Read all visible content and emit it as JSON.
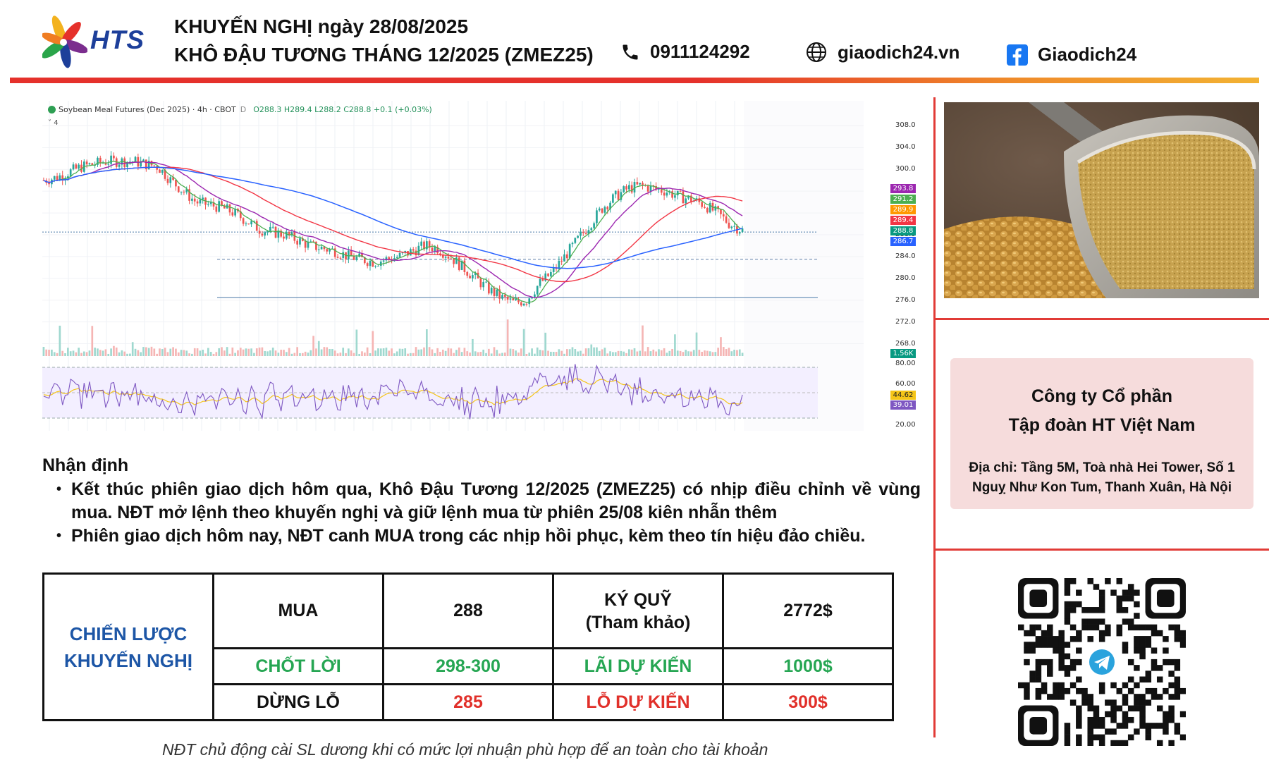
{
  "header": {
    "logo_text": "HTS",
    "title_line1": "KHUYẾN NGHỊ ngày 28/08/2025",
    "title_line2": "KHÔ ĐẬU TƯƠNG THÁNG 12/2025 (ZMEZ25)",
    "phone": "0911124292",
    "website": "giaodich24.vn",
    "facebook": "Giaodich24"
  },
  "chart_data": {
    "type": "candlestick",
    "title": "Soybean Meal Futures (Dec 2025) · 4h · CBOT",
    "interval_badge": "D",
    "ohlc": "O288.3 H289.4 L288.2 C288.8 +0.1 (+0.03%)",
    "indicator_badge": "4",
    "price_ticks": [
      "308.0",
      "304.0",
      "300.0",
      "296.0",
      "292.0",
      "288.0",
      "284.0",
      "280.0",
      "276.0",
      "272.0",
      "268.0"
    ],
    "price_labels": [
      {
        "value": "293.8",
        "color": "#9c27b0"
      },
      {
        "value": "291.2",
        "color": "#4caf50"
      },
      {
        "value": "289.9",
        "color": "#ff9800"
      },
      {
        "value": "289.4",
        "color": "#f23645"
      },
      {
        "value": "288.8",
        "color": "#089981"
      },
      {
        "value": "286.7",
        "color": "#2962ff"
      }
    ],
    "volume_label": {
      "value": "1.56K",
      "color": "#089981"
    },
    "rsi_ticks": [
      "80.00",
      "60.00",
      "40.00",
      "20.00"
    ],
    "rsi_labels": [
      {
        "value": "44.62",
        "color": "#f5c518"
      },
      {
        "value": "39.01",
        "color": "#7e57c2"
      }
    ],
    "ylim": [
      266,
      310
    ],
    "close_path": [
      298,
      298.5,
      299.5,
      300.5,
      301,
      301.5,
      301.5,
      301.5,
      301,
      300.5,
      298,
      296,
      294,
      293.5,
      293,
      292,
      290.5,
      289,
      288.5,
      288,
      287,
      286,
      285.5,
      285,
      284,
      283.5,
      283,
      283.5,
      284,
      285,
      286,
      285.5,
      284,
      282,
      280,
      278,
      276.5,
      275.5,
      276,
      279,
      281,
      284,
      287,
      290,
      293,
      295,
      296.5,
      297,
      296.5,
      296,
      295,
      294.5,
      293.5,
      292,
      290,
      288.8
    ],
    "horizontal_levels": [
      288.5,
      283.5,
      276.5
    ]
  },
  "analysis": {
    "title": "Nhận định",
    "bullets": [
      "Kết thúc phiên giao dịch hôm qua, Khô Đậu Tương 12/2025 (ZMEZ25) có nhịp điều chỉnh về vùng mua. NĐT mở lệnh theo khuyến nghị và giữ lệnh mua từ phiên 25/08 kiên nhẫn thêm",
      "Phiên giao dịch hôm nay, NĐT canh MUA trong các nhịp hồi phục, kèm theo tín hiệu đảo chiều."
    ]
  },
  "strategy": {
    "label_line1": "CHIẾN LƯỢC",
    "label_line2": "KHUYẾN NGHỊ",
    "rows": [
      {
        "action": "MUA",
        "price": "288",
        "metric_line1": "KÝ QUỸ",
        "metric_line2": "(Tham khảo)",
        "amount": "2772$"
      },
      {
        "action": "CHỐT LỜI",
        "price": "298-300",
        "metric_line1": "LÃI DỰ KIẾN",
        "metric_line2": "",
        "amount": "1000$"
      },
      {
        "action": "DỪNG LỖ",
        "price": "285",
        "metric_line1": "LỖ DỰ KIẾN",
        "metric_line2": "",
        "amount": "300$"
      }
    ]
  },
  "footnote": "NĐT chủ động cài SL dương khi có mức lợi nhuận phù hợp để an toàn cho tài khoản",
  "company": {
    "name_line1": "Công ty Cổ phần",
    "name_line2": "Tập đoàn HT Việt Nam",
    "address_line1": "Địa chỉ: Tầng 5M, Toà nhà Hei Tower, Số 1",
    "address_line2": "Nguỵ Như Kon Tum, Thanh Xuân, Hà Nội"
  },
  "colors": {
    "accent_red": "#e5312b",
    "accent_orange": "#f2b233",
    "strategy_blue": "#1d56a6",
    "profit_green": "#26a653",
    "loss_red": "#e1302a",
    "card_pink": "#f6dcdc"
  }
}
